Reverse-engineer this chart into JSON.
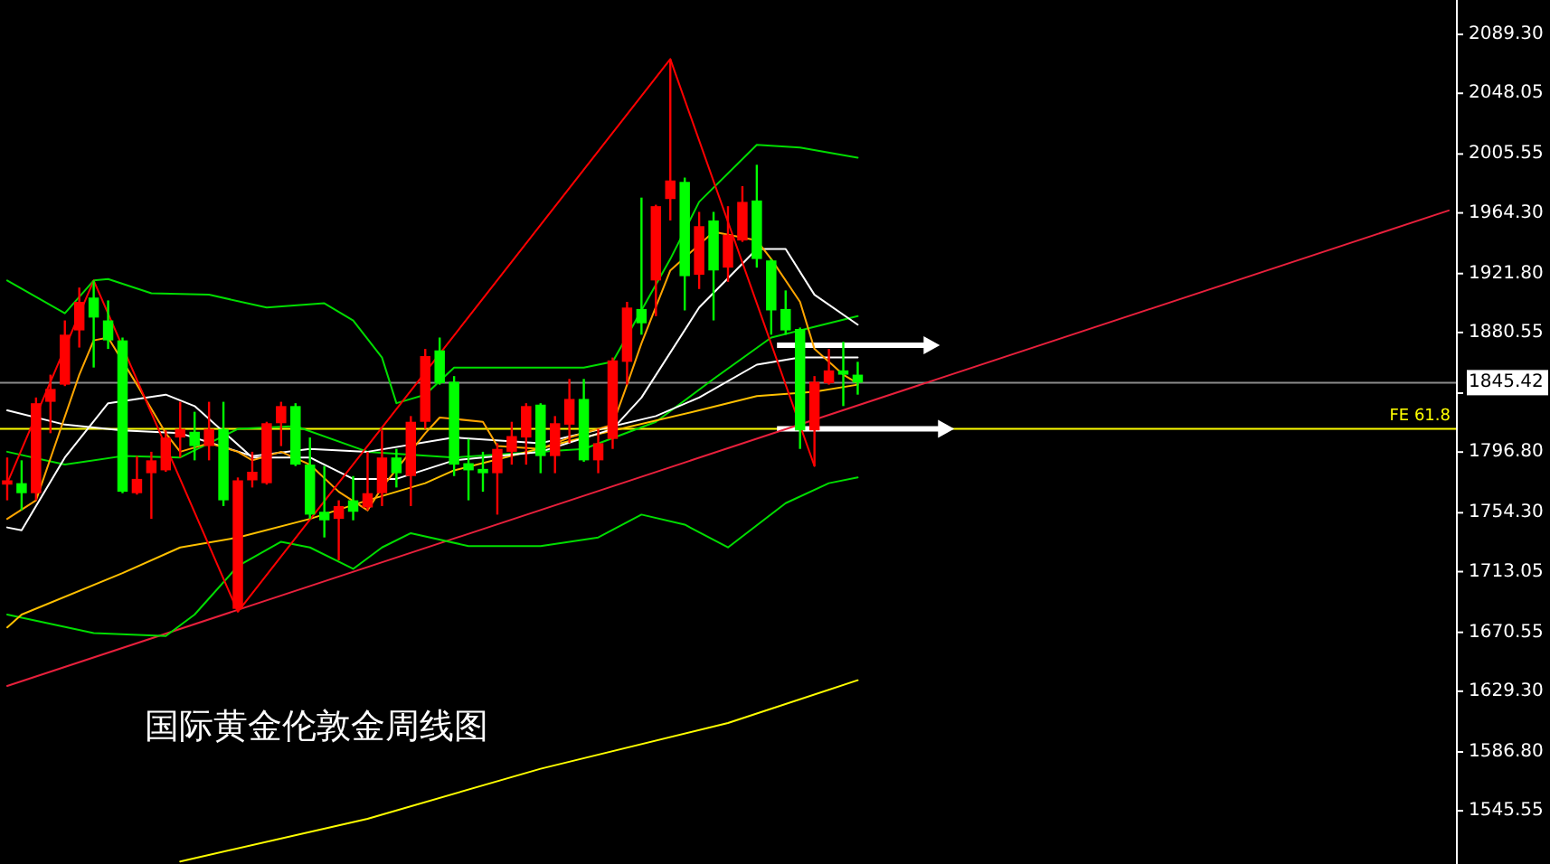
{
  "chart_data": {
    "type": "candlestick",
    "title": "国际黄金伦敦金周线图",
    "categories": [
      null,
      null,
      null,
      null,
      null,
      null,
      null,
      null,
      null,
      null,
      null,
      null,
      null,
      null,
      null,
      null,
      null,
      null,
      null,
      null,
      null,
      null,
      null,
      null,
      null,
      null,
      null,
      null,
      null,
      null,
      null,
      null,
      null,
      null,
      null,
      null,
      null,
      null,
      null,
      null,
      null,
      null,
      null,
      null,
      null,
      null,
      null,
      null,
      null,
      null,
      null,
      null,
      null,
      null,
      null,
      null,
      null,
      null,
      null,
      null,
      null,
      null,
      null,
      null,
      null,
      null,
      null,
      null,
      null,
      null,
      null,
      null,
      null,
      null,
      null,
      null,
      null,
      null,
      null,
      null,
      null,
      null,
      null,
      null,
      null,
      null,
      null,
      null,
      null,
      null,
      null,
      null,
      null,
      null,
      null,
      null,
      null,
      null,
      null,
      null,
      null
    ],
    "ylim": [
      1508.3,
      2113.4
    ],
    "tick_labels": "y",
    "yticks": [
      {
        "value": 2089.3,
        "label": "2089.30"
      },
      {
        "value": 2048.05,
        "label": "2048.05"
      },
      {
        "value": 2005.55,
        "label": "2005.55"
      },
      {
        "value": 1964.3,
        "label": "1964.30"
      },
      {
        "value": 1921.8,
        "label": "1921.80"
      },
      {
        "value": 1880.55,
        "label": "1880.55"
      },
      {
        "value": 1838.05,
        "label": null
      },
      {
        "value": 1796.8,
        "label": "1796.80"
      },
      {
        "value": 1754.3,
        "label": "1754.30"
      },
      {
        "value": 1713.05,
        "label": "1713.05"
      },
      {
        "value": 1670.55,
        "label": "1670.55"
      },
      {
        "value": 1629.3,
        "label": "1629.30"
      },
      {
        "value": 1586.8,
        "label": "1586.80"
      },
      {
        "value": 1545.55,
        "label": "1545.55"
      }
    ],
    "ref_lines": [
      {
        "axis": "y",
        "value": 1845.42,
        "label": "1845.42",
        "color": "#8c8c8c"
      },
      {
        "axis": "y",
        "value": 1813,
        "label": "FE 61.8",
        "color": "#ffff00"
      }
    ],
    "series": [
      {
        "type": "line",
        "color": "#ffff00",
        "values": [
          null,
          null,
          null,
          null,
          null,
          null,
          null,
          null,
          null,
          null,
          null,
          null,
          1510,
          null,
          null,
          null,
          null,
          null,
          null,
          null,
          null,
          null,
          null,
          null,
          null,
          1540,
          null,
          null,
          null,
          null,
          null,
          null,
          null,
          null,
          null,
          null,
          null,
          1575,
          null,
          null,
          null,
          null,
          null,
          null,
          null,
          null,
          null,
          null,
          null,
          null,
          1607,
          null,
          null,
          null,
          null,
          null,
          null,
          null,
          null,
          1637,
          null,
          null,
          null,
          null,
          null,
          null,
          null,
          null,
          null,
          null,
          null,
          null,
          null,
          null,
          null,
          null,
          null,
          null,
          null,
          null,
          null,
          null,
          null,
          null,
          null,
          null,
          null,
          null,
          null,
          null,
          null,
          null,
          null,
          null,
          null,
          null,
          null,
          null,
          null,
          null,
          null
        ]
      },
      {
        "type": "line",
        "color": "#e8203c",
        "values": [
          1633,
          null,
          null,
          null,
          null,
          null,
          null,
          null,
          null,
          null,
          null,
          null,
          null,
          null,
          null,
          null,
          null,
          null,
          null,
          null,
          null,
          null,
          null,
          null,
          null,
          null,
          null,
          null,
          null,
          null,
          null,
          null,
          null,
          null,
          null,
          null,
          null,
          null,
          null,
          null,
          null,
          null,
          null,
          null,
          null,
          null,
          null,
          null,
          null,
          null,
          null,
          null,
          null,
          null,
          null,
          null,
          null,
          null,
          null,
          null,
          null,
          null,
          null,
          null,
          null,
          null,
          null,
          null,
          null,
          null,
          null,
          null,
          null,
          null,
          null,
          null,
          null,
          null,
          null,
          null,
          null,
          null,
          null,
          null,
          null,
          null,
          null,
          null,
          null,
          null,
          null,
          null,
          null,
          null,
          null,
          null,
          null,
          null,
          null,
          null,
          1966
        ]
      },
      {
        "type": "line",
        "color": "#00dd00",
        "values": [
          1917,
          null,
          null,
          null,
          1894,
          null,
          1917,
          1918,
          null,
          null,
          1908,
          null,
          null,
          null,
          1907,
          null,
          null,
          null,
          1898,
          null,
          null,
          null,
          1901,
          null,
          1889,
          null,
          1863,
          1831,
          null,
          1837,
          null,
          1856,
          null,
          null,
          null,
          null,
          null,
          null,
          null,
          null,
          1856,
          null,
          1860,
          null,
          null,
          null,
          1932,
          null,
          1972,
          null,
          null,
          null,
          2012,
          null,
          null,
          2010,
          null,
          null,
          null,
          2003,
          null,
          null,
          null,
          null,
          null,
          null,
          null,
          null,
          null,
          null,
          null,
          null,
          null,
          null,
          null,
          null,
          null,
          null,
          null,
          null,
          null,
          null,
          null,
          null,
          null,
          null,
          null,
          null,
          null,
          null,
          null,
          null,
          null,
          null,
          null,
          null,
          null,
          null,
          null,
          null,
          null
        ]
      },
      {
        "type": "line",
        "color": "#00dd00",
        "values": [
          1797,
          null,
          null,
          null,
          1788,
          null,
          null,
          null,
          1794,
          null,
          null,
          null,
          1793,
          null,
          null,
          null,
          1813,
          null,
          null,
          null,
          1815,
          null,
          null,
          null,
          null,
          1797,
          null,
          null,
          null,
          null,
          null,
          1793,
          null,
          null,
          null,
          null,
          null,
          null,
          null,
          null,
          1799,
          null,
          null,
          null,
          null,
          1818,
          null,
          null,
          null,
          1848,
          null,
          null,
          null,
          1877,
          null,
          null,
          null,
          null,
          null,
          1892,
          null,
          null,
          null,
          null,
          null,
          null,
          null,
          null,
          null,
          null,
          null,
          null,
          null,
          null,
          null,
          null,
          null,
          null,
          null,
          null,
          null,
          null,
          null,
          null,
          null,
          null,
          null,
          null,
          null,
          null,
          null,
          null,
          null,
          null,
          null,
          null,
          null,
          null,
          null,
          null,
          null
        ]
      },
      {
        "type": "line",
        "color": "#00dd00",
        "values": [
          1683,
          null,
          null,
          null,
          null,
          null,
          1670,
          null,
          null,
          null,
          null,
          1668,
          null,
          1683,
          null,
          null,
          1717,
          null,
          null,
          1734,
          null,
          1730,
          null,
          null,
          1715,
          null,
          1730,
          null,
          1740,
          null,
          null,
          null,
          1731,
          null,
          null,
          null,
          null,
          1731,
          null,
          null,
          null,
          1737,
          null,
          null,
          1753,
          null,
          null,
          1746,
          null,
          null,
          1730,
          null,
          null,
          null,
          1761,
          null,
          null,
          1775,
          null,
          1779,
          null,
          null,
          null,
          null,
          null,
          null,
          null,
          null,
          null,
          null,
          null,
          null,
          null,
          null,
          null,
          null,
          null,
          null,
          null,
          null,
          null,
          null,
          null,
          null,
          null,
          null,
          null,
          null,
          null,
          null,
          null,
          null,
          null,
          null,
          null,
          null,
          null,
          null,
          null,
          null,
          null
        ]
      },
      {
        "type": "line",
        "color": "#ffc000",
        "values": [
          1674,
          1683,
          null,
          null,
          null,
          null,
          null,
          null,
          1712,
          null,
          null,
          null,
          1730,
          null,
          null,
          null,
          1737,
          null,
          null,
          null,
          null,
          1750,
          null,
          null,
          null,
          1763,
          null,
          null,
          null,
          1775,
          null,
          1784,
          null,
          null,
          null,
          null,
          null,
          null,
          null,
          null,
          1807,
          null,
          null,
          null,
          null,
          null,
          null,
          null,
          1826,
          null,
          null,
          null,
          1836,
          null,
          null,
          null,
          1839,
          null,
          null,
          1844,
          null,
          null,
          null,
          null,
          null,
          null,
          null,
          null,
          null,
          null,
          null,
          null,
          null,
          null,
          null,
          null,
          null,
          null,
          null,
          null,
          null,
          null,
          null,
          null,
          null,
          null,
          null,
          null,
          null,
          null,
          null,
          null,
          null,
          null,
          null,
          null,
          null,
          null,
          null,
          null,
          null
        ]
      },
      {
        "type": "line",
        "color": "#ffffff",
        "values": [
          1826,
          null,
          null,
          null,
          1816,
          null,
          null,
          null,
          1812,
          null,
          null,
          null,
          1810,
          null,
          null,
          null,
          null,
          1794,
          null,
          null,
          null,
          1799,
          null,
          null,
          null,
          1797,
          null,
          null,
          null,
          null,
          null,
          1807,
          null,
          null,
          null,
          null,
          null,
          1803,
          null,
          null,
          1810,
          null,
          null,
          null,
          null,
          1822,
          null,
          null,
          1835,
          null,
          null,
          null,
          1858,
          null,
          null,
          1863,
          null,
          null,
          null,
          1863,
          null,
          null,
          null,
          null,
          null,
          null,
          null,
          null,
          null,
          null,
          null,
          null,
          null,
          null,
          null,
          null,
          null,
          null,
          null,
          null,
          null,
          null,
          null,
          null,
          null,
          null,
          null,
          null,
          null,
          null,
          null,
          null,
          null,
          null,
          null,
          null,
          null,
          null,
          null,
          null,
          null
        ]
      },
      {
        "type": "line",
        "color": "#ffffff",
        "values": [
          1744,
          1742,
          null,
          null,
          1793,
          null,
          null,
          1831,
          null,
          null,
          null,
          1837,
          null,
          1829,
          null,
          null,
          null,
          1793,
          null,
          null,
          null,
          1793,
          null,
          null,
          1778,
          null,
          null,
          1778,
          null,
          null,
          null,
          1791,
          null,
          null,
          null,
          null,
          null,
          1797,
          null,
          null,
          null,
          null,
          1813,
          null,
          1835,
          null,
          null,
          null,
          1898,
          null,
          null,
          null,
          1939,
          null,
          1939,
          null,
          1907,
          null,
          null,
          1886,
          null,
          null,
          null,
          null,
          null,
          null,
          null,
          null,
          null,
          null,
          null,
          null,
          null,
          null,
          null,
          null,
          null,
          null,
          null,
          null,
          null,
          null,
          null,
          null,
          null,
          null,
          null,
          null,
          null,
          null,
          null,
          null,
          null,
          null,
          null,
          null,
          null,
          null,
          null,
          null,
          null
        ]
      },
      {
        "type": "line",
        "color": "#ffa500",
        "values": [
          1750,
          null,
          1763,
          null,
          null,
          1851,
          1875,
          1877,
          null,
          1844,
          null,
          1810,
          1797,
          null,
          1803,
          null,
          1797,
          1791,
          null,
          1797,
          null,
          1788,
          null,
          1769,
          null,
          1756,
          1772,
          null,
          null,
          1810,
          1821,
          null,
          null,
          1818,
          1801,
          null,
          null,
          1799,
          null,
          1807,
          null,
          null,
          1816,
          1844,
          1873,
          null,
          1924,
          null,
          null,
          1951,
          null,
          null,
          1945,
          1932,
          null,
          1902,
          1869,
          null,
          1851,
          1845,
          null,
          null,
          null,
          null,
          null,
          null,
          null,
          null,
          null,
          null,
          null,
          null,
          null,
          null,
          null,
          null,
          null,
          null,
          null,
          null,
          null,
          null,
          null,
          null,
          null,
          null,
          null,
          null,
          null,
          null,
          null,
          null,
          null,
          null,
          null,
          null,
          null,
          null,
          null,
          null,
          null
        ]
      },
      {
        "type": "line",
        "color": "#ff0000",
        "values": [
          1775,
          null,
          null,
          null,
          null,
          null,
          1917,
          null,
          null,
          null,
          null,
          null,
          null,
          null,
          null,
          null,
          1685,
          null,
          null,
          null,
          null,
          null,
          null,
          null,
          null,
          null,
          null,
          null,
          null,
          null,
          null,
          null,
          null,
          null,
          null,
          null,
          null,
          null,
          null,
          null,
          null,
          null,
          null,
          null,
          null,
          null,
          2072,
          null,
          null,
          null,
          null,
          null,
          null,
          null,
          null,
          null,
          1787,
          null,
          null,
          null,
          null,
          null,
          null,
          null,
          null,
          null,
          null,
          null,
          null,
          null,
          null,
          null,
          null,
          null,
          null,
          null,
          null,
          null,
          null,
          null,
          null,
          null,
          null,
          null,
          null,
          null,
          null,
          null,
          null,
          null,
          null,
          null,
          null,
          null,
          null,
          null,
          null,
          null,
          null,
          null,
          null
        ]
      },
      {
        "type": "candlestick",
        "colors": [
          "#ff0000",
          "#00ff00",
          "#ff0000",
          "#ff0000",
          "#ff0000",
          "#ff0000",
          "#00ff00",
          "#00ff00",
          "#00ff00",
          "#ff0000",
          "#ff0000",
          "#ff0000",
          "#ff0000",
          "#00ff00",
          "#ff0000",
          "#00ff00",
          "#ff0000",
          "#ff0000",
          "#ff0000",
          "#ff0000",
          "#00ff00",
          "#00ff00",
          "#00ff00",
          "#ff0000",
          "#00ff00",
          "#ff0000",
          "#ff0000",
          "#00ff00",
          "#ff0000",
          "#ff0000",
          "#00ff00",
          "#00ff00",
          "#00ff00",
          "#00ff00",
          "#ff0000",
          "#ff0000",
          "#ff0000",
          "#00ff00",
          "#ff0000",
          "#ff0000",
          "#00ff00",
          "#ff0000",
          "#ff0000",
          "#ff0000",
          "#00ff00",
          "#ff0000",
          "#ff0000",
          "#00ff00",
          "#ff0000",
          "#00ff00",
          "#ff0000",
          "#ff0000",
          "#00ff00",
          "#00ff00",
          "#00ff00",
          "#00ff00",
          "#ff0000",
          "#ff0000",
          "#00ff00",
          "#00ff00",
          null,
          null,
          null,
          null,
          null,
          null,
          null,
          null,
          null,
          null,
          null,
          null,
          null,
          null,
          null,
          null,
          null,
          null,
          null,
          null,
          null,
          null,
          null,
          null,
          null,
          null,
          null,
          null,
          null,
          null,
          null,
          null,
          null,
          null,
          null,
          null,
          null,
          null,
          null,
          null,
          null
        ],
        "ohlc": [
          [
            1774,
            1793,
            1763,
            1777
          ],
          [
            1775,
            1791,
            1756,
            1768
          ],
          [
            1768,
            1835,
            1763,
            1831
          ],
          [
            1832,
            1851,
            1810,
            1841
          ],
          [
            1844,
            1889,
            1843,
            1879
          ],
          [
            1882,
            1912,
            1870,
            1902
          ],
          [
            1905,
            1917,
            1856,
            1891
          ],
          [
            1889,
            1903,
            1869,
            1875
          ],
          [
            1875,
            1877,
            1768,
            1769
          ],
          [
            1768,
            1794,
            1767,
            1778
          ],
          [
            1782,
            1797,
            1750,
            1791
          ],
          [
            1784,
            1812,
            1783,
            1807
          ],
          [
            1807,
            1832,
            1793,
            1813
          ],
          [
            1811,
            1825,
            1791,
            1801
          ],
          [
            1801,
            1832,
            1791,
            1813
          ],
          [
            1813,
            1832,
            1759,
            1763
          ],
          [
            1687,
            1779,
            1685,
            1777
          ],
          [
            1777,
            1797,
            1772,
            1783
          ],
          [
            1775,
            1818,
            1774,
            1817
          ],
          [
            1817,
            1832,
            1801,
            1829
          ],
          [
            1829,
            1831,
            1787,
            1788
          ],
          [
            1788,
            1807,
            1750,
            1753
          ],
          [
            1755,
            1787,
            1737,
            1749
          ],
          [
            1750,
            1763,
            1721,
            1759
          ],
          [
            1763,
            1780,
            1749,
            1755
          ],
          [
            1758,
            1797,
            1756,
            1768
          ],
          [
            1768,
            1812,
            1759,
            1793
          ],
          [
            1793,
            1799,
            1772,
            1782
          ],
          [
            1780,
            1822,
            1759,
            1818
          ],
          [
            1818,
            1869,
            1813,
            1864
          ],
          [
            1868,
            1877,
            1844,
            1845
          ],
          [
            1846,
            1850,
            1780,
            1788
          ],
          [
            1789,
            1806,
            1763,
            1784
          ],
          [
            1785,
            1797,
            1769,
            1782
          ],
          [
            1782,
            1803,
            1753,
            1799
          ],
          [
            1797,
            1818,
            1788,
            1808
          ],
          [
            1807,
            1831,
            1788,
            1829
          ],
          [
            1830,
            1831,
            1782,
            1794
          ],
          [
            1794,
            1822,
            1782,
            1817
          ],
          [
            1816,
            1848,
            1803,
            1834
          ],
          [
            1834,
            1848,
            1790,
            1791
          ],
          [
            1791,
            1813,
            1782,
            1803
          ],
          [
            1806,
            1863,
            1799,
            1861
          ],
          [
            1860,
            1902,
            1844,
            1898
          ],
          [
            1897,
            1975,
            1879,
            1887
          ],
          [
            1917,
            1970,
            1892,
            1969
          ],
          [
            1974,
            2072,
            1959,
            1987
          ],
          [
            1986,
            1989,
            1896,
            1920
          ],
          [
            1921,
            1965,
            1911,
            1955
          ],
          [
            1959,
            1965,
            1889,
            1924
          ],
          [
            1926,
            1969,
            1916,
            1949
          ],
          [
            1945,
            1983,
            1944,
            1972
          ],
          [
            1973,
            1998,
            1926,
            1932
          ],
          [
            1931,
            1932,
            1879,
            1896
          ],
          [
            1897,
            1910,
            1879,
            1882
          ],
          [
            1883,
            1884,
            1799,
            1812
          ],
          [
            1812,
            1850,
            1787,
            1846
          ],
          [
            1845,
            1869,
            1844,
            1854
          ],
          [
            1854,
            1874,
            1829,
            1851
          ],
          [
            1851,
            1860,
            1837,
            1845.42
          ],
          null,
          null,
          null,
          null,
          null,
          null,
          null,
          null,
          null,
          null,
          null,
          null,
          null,
          null,
          null,
          null,
          null,
          null,
          null,
          null,
          null,
          null,
          null,
          null,
          null,
          null,
          null,
          null,
          null,
          null,
          null,
          null,
          null,
          null,
          null,
          null,
          null,
          null,
          null,
          null,
          null
        ]
      }
    ]
  }
}
